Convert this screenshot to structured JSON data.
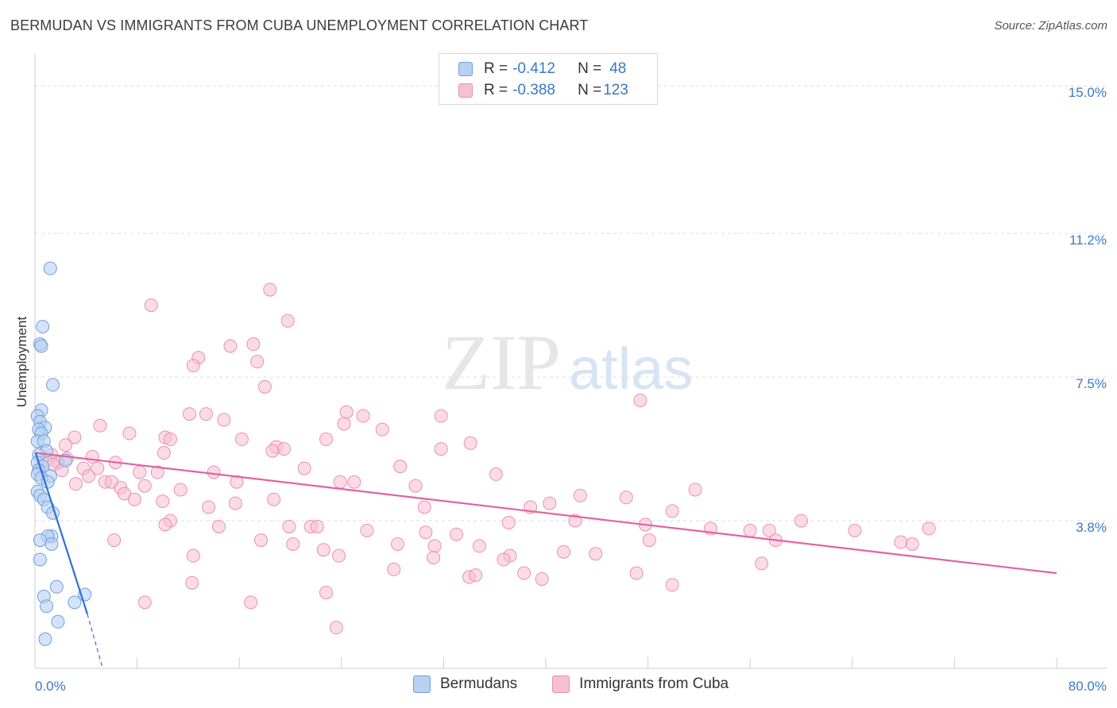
{
  "title": "BERMUDAN VS IMMIGRANTS FROM CUBA UNEMPLOYMENT CORRELATION CHART",
  "source": "Source: ZipAtlas.com",
  "watermark": {
    "zip": "ZIP",
    "atlas": "atlas"
  },
  "legend": {
    "rows": [
      {
        "r_label": "R = ",
        "r_value": "-0.412",
        "n_label": "N = ",
        "n_value": "48"
      },
      {
        "r_label": "R = ",
        "r_value": "-0.388",
        "n_label": "N = ",
        "n_value": "123"
      }
    ]
  },
  "bottom_legend": {
    "series1": "Bermudans",
    "series2": "Immigrants from Cuba"
  },
  "colors": {
    "blue_fill": "#b8d0f2",
    "blue_stroke": "#6f9fe0",
    "blue_line": "#2f6fd6",
    "pink_fill": "#f7c0d2",
    "pink_stroke": "#eb8fb0",
    "pink_line": "#e2649a",
    "tick_text": "#3a78c9",
    "grid": "#dedede"
  },
  "chart_data": {
    "type": "scatter",
    "title": "BERMUDAN VS IMMIGRANTS FROM CUBA UNEMPLOYMENT CORRELATION CHART",
    "xlabel": "",
    "ylabel": "Unemployment",
    "xlim": [
      0,
      80
    ],
    "ylim": [
      0,
      15.7
    ],
    "x_tick_labels": [
      "0.0%",
      "80.0%"
    ],
    "y_ticks": [
      3.8,
      7.5,
      11.2,
      15.0
    ],
    "y_tick_labels": [
      "3.8%",
      "7.5%",
      "11.2%",
      "15.0%"
    ],
    "series": [
      {
        "name": "Bermudans",
        "r": -0.412,
        "n": 48,
        "trend": {
          "x": [
            0.05,
            4.1
          ],
          "y": [
            5.55,
            1.4
          ],
          "dashed_to": [
            5.3,
            0.0
          ]
        },
        "points": [
          [
            1.2,
            10.3
          ],
          [
            0.6,
            8.8
          ],
          [
            0.4,
            8.35
          ],
          [
            0.5,
            8.3
          ],
          [
            1.4,
            7.3
          ],
          [
            0.5,
            6.65
          ],
          [
            0.2,
            6.5
          ],
          [
            0.4,
            6.35
          ],
          [
            0.8,
            6.2
          ],
          [
            0.3,
            6.15
          ],
          [
            0.5,
            6.05
          ],
          [
            0.2,
            5.85
          ],
          [
            0.7,
            5.85
          ],
          [
            0.9,
            5.6
          ],
          [
            0.3,
            5.5
          ],
          [
            0.2,
            5.3
          ],
          [
            2.4,
            5.35
          ],
          [
            0.6,
            5.2
          ],
          [
            0.3,
            5.1
          ],
          [
            0.2,
            5.0
          ],
          [
            1.2,
            4.95
          ],
          [
            0.5,
            4.9
          ],
          [
            1.0,
            4.8
          ],
          [
            0.2,
            4.55
          ],
          [
            0.4,
            4.45
          ],
          [
            0.7,
            4.35
          ],
          [
            1.0,
            4.15
          ],
          [
            1.4,
            4.0
          ],
          [
            1.3,
            3.4
          ],
          [
            1.0,
            3.4
          ],
          [
            0.4,
            3.3
          ],
          [
            1.3,
            3.2
          ],
          [
            0.4,
            2.8
          ],
          [
            1.7,
            2.1
          ],
          [
            0.7,
            1.85
          ],
          [
            3.9,
            1.9
          ],
          [
            3.1,
            1.7
          ],
          [
            0.9,
            1.6
          ],
          [
            1.8,
            1.2
          ],
          [
            0.8,
            0.75
          ]
        ]
      },
      {
        "name": "Immigrants from Cuba",
        "r": -0.388,
        "n": 123,
        "trend": {
          "x": [
            0.0,
            80.0
          ],
          "y": [
            5.55,
            2.45
          ]
        },
        "points": [
          [
            18.4,
            9.75
          ],
          [
            9.1,
            9.35
          ],
          [
            19.8,
            8.95
          ],
          [
            17.1,
            8.35
          ],
          [
            15.3,
            8.3
          ],
          [
            12.8,
            8.0
          ],
          [
            17.4,
            7.9
          ],
          [
            12.4,
            7.8
          ],
          [
            18.0,
            7.25
          ],
          [
            47.4,
            6.9
          ],
          [
            24.4,
            6.6
          ],
          [
            12.1,
            6.55
          ],
          [
            13.4,
            6.55
          ],
          [
            25.7,
            6.5
          ],
          [
            31.8,
            6.5
          ],
          [
            14.8,
            6.4
          ],
          [
            24.2,
            6.3
          ],
          [
            5.1,
            6.25
          ],
          [
            27.2,
            6.15
          ],
          [
            7.4,
            6.05
          ],
          [
            3.1,
            5.95
          ],
          [
            10.2,
            5.95
          ],
          [
            10.6,
            5.9
          ],
          [
            16.2,
            5.9
          ],
          [
            22.8,
            5.9
          ],
          [
            34.1,
            5.8
          ],
          [
            2.4,
            5.75
          ],
          [
            18.9,
            5.7
          ],
          [
            19.5,
            5.65
          ],
          [
            31.8,
            5.65
          ],
          [
            18.6,
            5.6
          ],
          [
            10.1,
            5.55
          ],
          [
            1.3,
            5.5
          ],
          [
            4.5,
            5.45
          ],
          [
            2.5,
            5.4
          ],
          [
            0.9,
            5.35
          ],
          [
            1.8,
            5.3
          ],
          [
            6.3,
            5.3
          ],
          [
            1.4,
            5.25
          ],
          [
            28.6,
            5.2
          ],
          [
            3.8,
            5.15
          ],
          [
            2.1,
            5.1
          ],
          [
            21.1,
            5.15
          ],
          [
            4.9,
            5.15
          ],
          [
            14.0,
            5.05
          ],
          [
            8.2,
            5.05
          ],
          [
            9.6,
            5.05
          ],
          [
            36.1,
            5.0
          ],
          [
            4.2,
            4.95
          ],
          [
            5.5,
            4.8
          ],
          [
            15.8,
            4.8
          ],
          [
            6.0,
            4.8
          ],
          [
            23.9,
            4.8
          ],
          [
            25.0,
            4.8
          ],
          [
            8.6,
            4.7
          ],
          [
            3.2,
            4.75
          ],
          [
            6.7,
            4.65
          ],
          [
            29.8,
            4.7
          ],
          [
            11.4,
            4.6
          ],
          [
            51.7,
            4.6
          ],
          [
            7.0,
            4.5
          ],
          [
            42.7,
            4.45
          ],
          [
            46.3,
            4.4
          ],
          [
            7.8,
            4.35
          ],
          [
            18.7,
            4.35
          ],
          [
            10.0,
            4.3
          ],
          [
            15.7,
            4.25
          ],
          [
            40.3,
            4.25
          ],
          [
            38.8,
            4.15
          ],
          [
            30.5,
            4.15
          ],
          [
            13.6,
            4.15
          ],
          [
            49.9,
            4.05
          ],
          [
            10.6,
            3.8
          ],
          [
            42.3,
            3.8
          ],
          [
            60.0,
            3.8
          ],
          [
            10.2,
            3.7
          ],
          [
            37.1,
            3.75
          ],
          [
            47.8,
            3.7
          ],
          [
            14.4,
            3.65
          ],
          [
            19.9,
            3.65
          ],
          [
            21.6,
            3.65
          ],
          [
            22.1,
            3.65
          ],
          [
            52.9,
            3.6
          ],
          [
            26.0,
            3.55
          ],
          [
            30.6,
            3.5
          ],
          [
            57.5,
            3.55
          ],
          [
            6.2,
            3.3
          ],
          [
            17.7,
            3.3
          ],
          [
            33.0,
            3.45
          ],
          [
            70.0,
            3.6
          ],
          [
            56.0,
            3.55
          ],
          [
            64.2,
            3.55
          ],
          [
            48.1,
            3.3
          ],
          [
            20.2,
            3.2
          ],
          [
            67.8,
            3.25
          ],
          [
            68.7,
            3.2
          ],
          [
            58.0,
            3.3
          ],
          [
            28.4,
            3.2
          ],
          [
            31.3,
            3.15
          ],
          [
            34.8,
            3.15
          ],
          [
            22.6,
            3.05
          ],
          [
            41.4,
            3.0
          ],
          [
            37.2,
            2.9
          ],
          [
            36.7,
            2.8
          ],
          [
            23.8,
            2.9
          ],
          [
            31.2,
            2.85
          ],
          [
            43.9,
            2.95
          ],
          [
            12.4,
            2.9
          ],
          [
            56.9,
            2.7
          ],
          [
            28.1,
            2.55
          ],
          [
            38.3,
            2.45
          ],
          [
            47.1,
            2.45
          ],
          [
            34.0,
            2.35
          ],
          [
            34.5,
            2.4
          ],
          [
            39.7,
            2.3
          ],
          [
            12.3,
            2.2
          ],
          [
            49.9,
            2.15
          ],
          [
            22.8,
            1.95
          ],
          [
            8.6,
            1.7
          ],
          [
            16.9,
            1.7
          ],
          [
            23.6,
            1.05
          ]
        ]
      }
    ]
  }
}
